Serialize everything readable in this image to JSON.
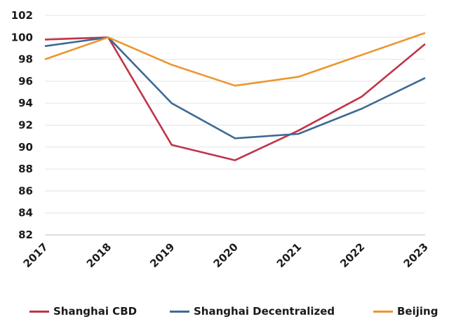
{
  "chart_data": {
    "type": "line",
    "title": "",
    "xlabel": "",
    "ylabel": "",
    "categories": [
      "2017",
      "2018",
      "2019",
      "2020",
      "2021",
      "2022",
      "2023"
    ],
    "ylim": [
      82,
      102
    ],
    "yticks": [
      "82",
      "84",
      "86",
      "88",
      "90",
      "92",
      "94",
      "96",
      "98",
      "100",
      "102"
    ],
    "grid": true,
    "legend_position": "bottom",
    "series": [
      {
        "name": "Shanghai CBD",
        "color": "#c0344a",
        "values": [
          99.8,
          100.0,
          90.2,
          88.8,
          91.5,
          94.6,
          99.4
        ]
      },
      {
        "name": "Shanghai Decentralized",
        "color": "#3e6a94",
        "values": [
          99.2,
          100.0,
          94.0,
          90.8,
          91.2,
          93.5,
          96.3
        ]
      },
      {
        "name": "Beijing",
        "color": "#ec962f",
        "values": [
          98.0,
          100.0,
          97.5,
          95.6,
          96.4,
          98.4,
          100.4
        ]
      }
    ]
  }
}
